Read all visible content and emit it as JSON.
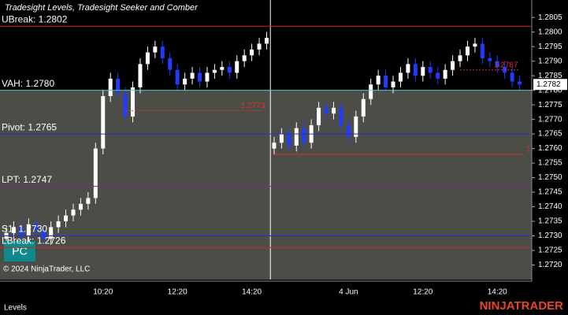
{
  "chart_data": {
    "type": "candlestick",
    "title": "Tradesight Levels, Tradesight Seeker and Comber",
    "categories": [
      null,
      null,
      null,
      null,
      null,
      null,
      null,
      null,
      null,
      null,
      null,
      null,
      null,
      "10:20",
      null,
      null,
      null,
      null,
      null,
      null,
      null,
      null,
      null,
      "12:20",
      null,
      null,
      null,
      null,
      null,
      null,
      null,
      null,
      null,
      "14:20",
      null,
      null,
      null,
      null,
      null,
      null,
      null,
      null,
      null,
      null,
      null,
      null,
      "4 Jun",
      null,
      null,
      null,
      null,
      null,
      null,
      null,
      null,
      null,
      "12:20",
      null,
      null,
      null,
      null,
      null,
      null,
      null,
      null,
      null,
      "14:20",
      null,
      null,
      null
    ],
    "open": [
      1.2729,
      1.2731,
      1.2733,
      1.273,
      1.2734,
      1.2732,
      1.2729,
      1.2733,
      1.2735,
      1.2737,
      1.2739,
      1.2741,
      1.2743,
      1.276,
      1.2778,
      1.2784,
      1.2779,
      1.2771,
      1.2781,
      1.2789,
      1.2793,
      1.2795,
      1.2791,
      1.2787,
      1.2782,
      1.2784,
      1.2786,
      1.2783,
      1.2786,
      1.2787,
      1.2788,
      1.2786,
      1.279,
      1.2792,
      1.2794,
      1.2796,
      1.276,
      1.2762,
      1.2765,
      1.2761,
      1.2767,
      1.2762,
      1.2768,
      1.2774,
      1.2772,
      1.2774,
      1.2768,
      1.2764,
      1.2771,
      1.2777,
      1.2782,
      1.2785,
      1.2781,
      1.2783,
      1.2786,
      1.2789,
      1.2785,
      1.2788,
      1.2786,
      1.2784,
      1.2787,
      1.279,
      1.2792,
      1.2795,
      1.2796,
      1.2791,
      1.279,
      1.2788,
      1.2786,
      1.2783
    ],
    "high": [
      1.2733,
      1.2735,
      1.2735,
      1.2736,
      1.2736,
      1.2734,
      1.2735,
      1.2737,
      1.2739,
      1.2741,
      1.2743,
      1.2745,
      1.2762,
      1.278,
      1.2786,
      1.2786,
      1.2781,
      1.2783,
      1.2791,
      1.2795,
      1.2797,
      1.2797,
      1.2793,
      1.2789,
      1.2786,
      1.2788,
      1.2788,
      1.2788,
      1.2789,
      1.279,
      1.279,
      1.2792,
      1.2794,
      1.2796,
      1.2798,
      1.28,
      1.2764,
      1.2767,
      1.2767,
      1.2769,
      1.2769,
      1.277,
      1.2776,
      1.2776,
      1.2776,
      1.2776,
      1.277,
      1.2773,
      1.2779,
      1.2784,
      1.2787,
      1.2787,
      1.2785,
      1.2788,
      1.2791,
      1.2791,
      1.279,
      1.279,
      1.2788,
      1.2789,
      1.2792,
      1.2794,
      1.2797,
      1.2798,
      1.2798,
      1.2793,
      1.2792,
      1.279,
      1.2788,
      1.2785
    ],
    "low": [
      1.2727,
      1.2729,
      1.2728,
      1.2728,
      1.273,
      1.2727,
      1.2727,
      1.2731,
      1.2733,
      1.2735,
      1.2737,
      1.2739,
      1.2741,
      1.2758,
      1.2776,
      1.2777,
      1.2769,
      1.2769,
      1.2779,
      1.2787,
      1.2791,
      1.2789,
      1.2785,
      1.278,
      1.278,
      1.2782,
      1.2781,
      1.2781,
      1.2784,
      1.2785,
      1.2784,
      1.2784,
      1.2788,
      1.279,
      1.2792,
      1.2794,
      1.2758,
      1.276,
      1.2759,
      1.2759,
      1.276,
      1.276,
      1.2766,
      1.277,
      1.277,
      1.2766,
      1.2762,
      1.2762,
      1.2769,
      1.2775,
      1.278,
      1.2779,
      1.2779,
      1.2781,
      1.2784,
      1.2783,
      1.2783,
      1.2784,
      1.2782,
      1.2782,
      1.2785,
      1.2788,
      1.279,
      1.2793,
      1.2789,
      1.2788,
      1.2786,
      1.2784,
      1.2781,
      1.278
    ],
    "close": [
      1.2731,
      1.2733,
      1.273,
      1.2734,
      1.2732,
      1.2729,
      1.2733,
      1.2735,
      1.2737,
      1.2739,
      1.2741,
      1.2743,
      1.276,
      1.2778,
      1.2784,
      1.2779,
      1.2771,
      1.2781,
      1.2789,
      1.2793,
      1.2795,
      1.2791,
      1.2787,
      1.2782,
      1.2784,
      1.2786,
      1.2783,
      1.2786,
      1.2787,
      1.2788,
      1.2786,
      1.279,
      1.2792,
      1.2794,
      1.2796,
      1.2798,
      1.2762,
      1.2765,
      1.2761,
      1.2767,
      1.2762,
      1.2768,
      1.2774,
      1.2772,
      1.2774,
      1.2768,
      1.2764,
      1.2771,
      1.2777,
      1.2782,
      1.2785,
      1.2781,
      1.2783,
      1.2786,
      1.2789,
      1.2785,
      1.2788,
      1.2786,
      1.2784,
      1.2787,
      1.279,
      1.2792,
      1.2795,
      1.2796,
      1.2791,
      1.279,
      1.2788,
      1.2786,
      1.2783,
      1.2782
    ],
    "up_color": "#ffffff",
    "down_color": "#1f3cff",
    "ylim": [
      1.2715,
      1.2811
    ],
    "yticks": [
      {
        "value": 1.272,
        "label": "1.2720"
      },
      1.2725,
      {
        "value": 1.273,
        "label": "1.2730"
      },
      1.2735,
      {
        "value": 1.274,
        "label": "1.2740"
      },
      1.2745,
      {
        "value": 1.275,
        "label": "1.2750"
      },
      1.2755,
      {
        "value": 1.276,
        "label": "1.2760"
      },
      1.2765,
      {
        "value": 1.277,
        "label": "1.2770"
      },
      1.2775,
      {
        "value": 1.278,
        "label": "1.2780"
      },
      1.2785,
      {
        "value": 1.279,
        "label": "1.2790"
      },
      1.2795,
      {
        "value": 1.28,
        "label": "1.2800"
      },
      1.2805
    ],
    "levels": [
      {
        "label": "UBreak: 1.2802",
        "value": 1.2802,
        "color": "#c0282d"
      },
      {
        "label": "VAH: 1.2780",
        "value": 1.278,
        "color": "#3fd6c8"
      },
      {
        "label": "Pivot: 1.2765",
        "value": 1.2765,
        "color": "#2233dd"
      },
      {
        "label": "LPT: 1.2747",
        "value": 1.2747,
        "color": "#8a2a8a"
      },
      {
        "label": "S1: 1.2730",
        "value": 1.273,
        "color": "#2233dd"
      },
      {
        "label": "LBreak: 1.2726",
        "value": 1.2726,
        "color": "#c0282d"
      }
    ],
    "annotations": [
      {
        "text": "1.2773",
        "value": 1.2773,
        "color": "#e0302a"
      },
      {
        "text": "1.2787",
        "value": 1.2787,
        "color": "#e0302a"
      },
      {
        "text": "1",
        "value": 1.2758,
        "color": "#e0302a"
      }
    ],
    "last_price": 1.2782,
    "button": "PC",
    "copyright": "© 2024 NinjaTrader, LLC",
    "tab": "Levels",
    "logo": "NINJATRADER"
  }
}
